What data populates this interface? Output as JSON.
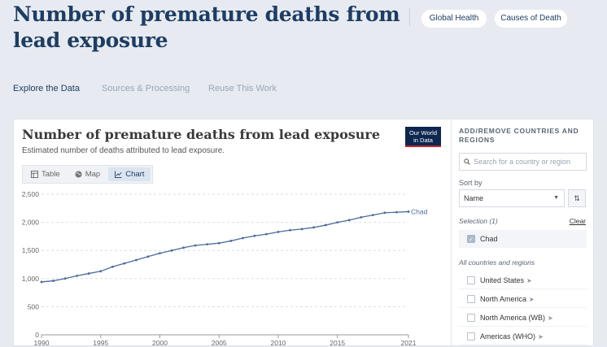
{
  "page": {
    "title": "Number of premature deaths from lead exposure",
    "tags": [
      "Global Health",
      "Causes of Death"
    ],
    "nav": [
      "Explore the Data",
      "Sources & Processing",
      "Reuse This Work"
    ]
  },
  "chart_card": {
    "title": "Number of premature deaths from lead exposure",
    "subtitle": "Estimated number of deaths attributed to lead exposure.",
    "logo": [
      "Our World",
      "in Data"
    ],
    "tabs": [
      "Table",
      "Map",
      "Chart"
    ],
    "active_tab": "Chart"
  },
  "chart_data": {
    "type": "line",
    "title": "Number of premature deaths from lead exposure",
    "subtitle": "Estimated number of deaths attributed to lead exposure.",
    "y_ticks": [
      "2,500",
      "2,000",
      "1,500",
      "1,000",
      "500",
      "0"
    ],
    "x_ticks": [
      "1990",
      "1995",
      "2000",
      "2005",
      "2010",
      "2015",
      "2021"
    ],
    "ylim": [
      0,
      2500
    ],
    "xlim": [
      1990,
      2021
    ],
    "grid": true,
    "series": [
      {
        "name": "Chad",
        "color": "#4c6a9c",
        "x": [
          1990,
          1991,
          1992,
          1993,
          1994,
          1995,
          1996,
          1997,
          1998,
          1999,
          2000,
          2001,
          2002,
          2003,
          2004,
          2005,
          2006,
          2007,
          2008,
          2009,
          2010,
          2011,
          2012,
          2013,
          2014,
          2015,
          2016,
          2017,
          2018,
          2019,
          2020,
          2021
        ],
        "values": [
          940,
          960,
          1000,
          1050,
          1090,
          1130,
          1210,
          1270,
          1330,
          1390,
          1450,
          1500,
          1550,
          1590,
          1610,
          1630,
          1670,
          1720,
          1760,
          1790,
          1830,
          1860,
          1880,
          1910,
          1950,
          2000,
          2040,
          2090,
          2130,
          2170,
          2180,
          2190
        ]
      }
    ]
  },
  "panel": {
    "heading": "ADD/REMOVE COUNTRIES AND REGIONS",
    "search_placeholder": "Search for a country or region",
    "sort_label": "Sort by",
    "sort_value": "Name",
    "selection_label": "Selection (1)",
    "clear_label": "Clear",
    "selected": [
      "Chad"
    ],
    "all_label": "All countries and regions",
    "all_items": [
      "United States",
      "North America",
      "North America (WB)",
      "Americas (WHO)"
    ]
  },
  "colors": {
    "brand": "#1d3d63",
    "series": "#4c6a9c",
    "logo_bg": "#0e2750",
    "logo_accent": "#c0262c"
  }
}
